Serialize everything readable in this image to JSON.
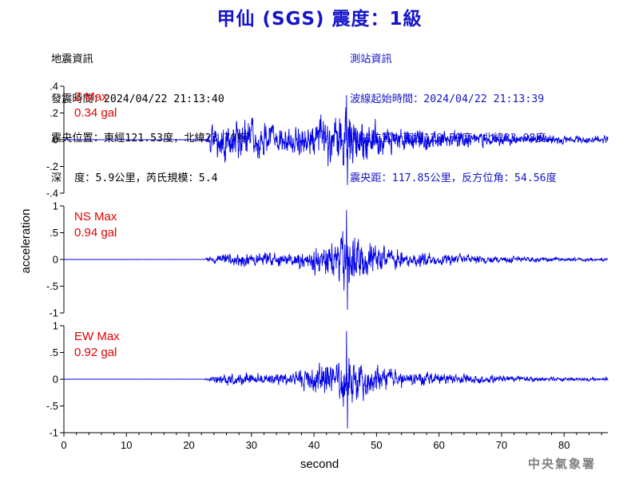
{
  "header": {
    "title": "甲仙 (SGS) 震度：1級"
  },
  "earthquake_info": {
    "heading": "地震資訊",
    "origin_time": "發震時間：2024/04/22 21:13:40",
    "epicenter": "震央位置：東經121.53度，北緯23.70度",
    "depth_magnitude": "深  度：5.9公里，芮氏規模：5.4"
  },
  "station_info": {
    "heading": "測站資訊",
    "wave_start": "波線起始時間：2024/04/22 21:13:39",
    "location": "測站位置：東經120.59度，北緯23.08度",
    "distance": "震央距：117.85公里，反方位角：54.56度"
  },
  "footer": {
    "credit": "中央氣象署"
  },
  "colors": {
    "trace": "#0000e6",
    "max_label": "#e60000",
    "title": "#1515c8",
    "axis": "#000000"
  },
  "chart_data": {
    "type": "line",
    "xlabel": "second",
    "ylabel": "acceleration",
    "xlim": [
      0,
      87
    ],
    "x_ticks": [
      0,
      10,
      20,
      30,
      40,
      50,
      60,
      70,
      80
    ],
    "grid": false,
    "sample_interval_s": 0.05,
    "panels": [
      {
        "name": "Z",
        "max_label": "Z Max",
        "max_value": "0.34 gal",
        "peak": 0.34,
        "ylim": [
          -0.4,
          0.4
        ],
        "y_ticks": [
          -0.4,
          -0.2,
          0,
          0.2,
          0.4
        ],
        "onset_s": 22.8,
        "envelope": [
          [
            0,
            0
          ],
          [
            22.5,
            0.004
          ],
          [
            23,
            0.12
          ],
          [
            24,
            0.22
          ],
          [
            26,
            0.3
          ],
          [
            28,
            0.25
          ],
          [
            32,
            0.2
          ],
          [
            36,
            0.17
          ],
          [
            40,
            0.24
          ],
          [
            45,
            0.34
          ],
          [
            48,
            0.26
          ],
          [
            52,
            0.16
          ],
          [
            60,
            0.12
          ],
          [
            70,
            0.07
          ],
          [
            80,
            0.05
          ],
          [
            87,
            0.04
          ]
        ]
      },
      {
        "name": "NS",
        "max_label": "NS Max",
        "max_value": "0.94 gal",
        "peak": 0.94,
        "ylim": [
          -1,
          1
        ],
        "y_ticks": [
          -1,
          -0.5,
          0,
          0.5,
          1
        ],
        "onset_s": 22.8,
        "envelope": [
          [
            0,
            0
          ],
          [
            22.5,
            0.004
          ],
          [
            23,
            0.08
          ],
          [
            25,
            0.15
          ],
          [
            28,
            0.22
          ],
          [
            32,
            0.2
          ],
          [
            36,
            0.18
          ],
          [
            40,
            0.4
          ],
          [
            43,
            0.6
          ],
          [
            45,
            0.94
          ],
          [
            47,
            0.7
          ],
          [
            50,
            0.4
          ],
          [
            55,
            0.25
          ],
          [
            60,
            0.18
          ],
          [
            70,
            0.1
          ],
          [
            80,
            0.06
          ],
          [
            87,
            0.05
          ]
        ]
      },
      {
        "name": "EW",
        "max_label": "EW Max",
        "max_value": "0.92 gal",
        "peak": 0.92,
        "ylim": [
          -1,
          1
        ],
        "y_ticks": [
          -1,
          -0.5,
          0,
          0.5,
          1
        ],
        "onset_s": 22.8,
        "envelope": [
          [
            0,
            0
          ],
          [
            22.5,
            0.004
          ],
          [
            23,
            0.08
          ],
          [
            25,
            0.14
          ],
          [
            28,
            0.2
          ],
          [
            32,
            0.16
          ],
          [
            36,
            0.2
          ],
          [
            40,
            0.38
          ],
          [
            43,
            0.55
          ],
          [
            45,
            0.92
          ],
          [
            47,
            0.65
          ],
          [
            50,
            0.4
          ],
          [
            55,
            0.22
          ],
          [
            60,
            0.16
          ],
          [
            70,
            0.1
          ],
          [
            80,
            0.06
          ],
          [
            87,
            0.05
          ]
        ]
      }
    ]
  }
}
